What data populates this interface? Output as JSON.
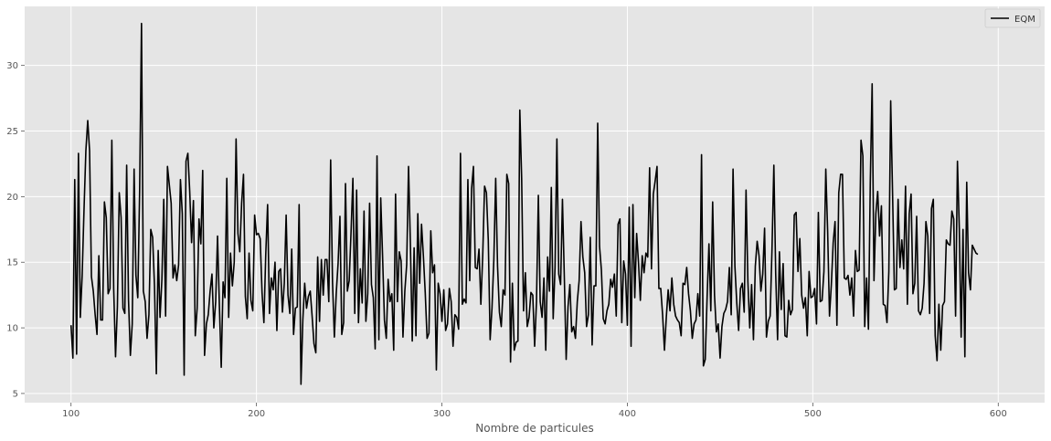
{
  "chart_data": {
    "type": "line",
    "title": "",
    "xlabel": "Nombre de particules",
    "ylabel": "",
    "xlim": [
      75,
      625
    ],
    "ylim": [
      4.3,
      34.5
    ],
    "xticks": [
      100,
      200,
      300,
      400,
      500,
      600
    ],
    "yticks": [
      5,
      10,
      15,
      20,
      25,
      30
    ],
    "grid": true,
    "legend_position": "top-right",
    "colors": {
      "plot_background": "#e5e5e5",
      "grid": "#ffffff",
      "line": "#000000"
    },
    "series": [
      {
        "name": "EQM",
        "x_start": 100,
        "x_step": 1,
        "values": [
          10.2,
          7.7,
          21.3,
          8.0,
          23.3,
          10.8,
          14.0,
          19.0,
          23.5,
          25.8,
          23.5,
          13.9,
          12.8,
          11.0,
          9.5,
          15.5,
          10.6,
          10.6,
          19.6,
          18.4,
          12.6,
          13.0,
          24.3,
          13.0,
          7.8,
          11.6,
          20.3,
          18.4,
          11.5,
          11.1,
          22.4,
          12.1,
          7.9,
          10.3,
          22.1,
          14.0,
          12.3,
          20.5,
          33.2,
          12.8,
          12.0,
          9.2,
          11.0,
          17.5,
          16.9,
          13.2,
          6.5,
          15.9,
          10.8,
          13.7,
          19.8,
          10.9,
          22.3,
          20.9,
          19.5,
          13.8,
          14.8,
          13.6,
          14.8,
          21.3,
          18.7,
          6.4,
          22.7,
          23.3,
          20.4,
          16.5,
          19.7,
          9.4,
          11.5,
          18.3,
          16.4,
          22.0,
          7.9,
          10.3,
          11.0,
          12.8,
          14.1,
          10.0,
          12.0,
          17.0,
          11.7,
          7.0,
          13.5,
          12.3,
          21.4,
          10.8,
          15.7,
          13.2,
          15.0,
          24.4,
          17.2,
          15.8,
          19.5,
          21.7,
          12.4,
          10.7,
          15.7,
          12.1,
          11.3,
          18.6,
          17.1,
          17.2,
          16.8,
          12.7,
          10.4,
          15.6,
          19.4,
          11.1,
          13.8,
          12.9,
          15.0,
          9.8,
          14.3,
          14.5,
          11.2,
          13.4,
          18.6,
          12.5,
          11.1,
          16.0,
          9.5,
          11.5,
          11.6,
          19.4,
          5.7,
          10.6,
          13.4,
          11.5,
          12.4,
          12.8,
          10.9,
          8.8,
          8.1,
          15.4,
          10.5,
          15.2,
          12.5,
          15.2,
          15.2,
          12.0,
          22.8,
          13.5,
          9.3,
          12.6,
          14.9,
          18.5,
          9.5,
          10.4,
          21.0,
          12.8,
          13.6,
          17.3,
          21.4,
          11.1,
          20.5,
          10.4,
          14.5,
          11.9,
          18.9,
          10.5,
          12.6,
          19.5,
          13.3,
          12.3,
          8.4,
          23.1,
          9.1,
          19.9,
          15.5,
          10.6,
          9.2,
          13.7,
          12.0,
          12.6,
          8.3,
          20.2,
          12.0,
          15.8,
          15.1,
          9.3,
          12.8,
          14.8,
          22.3,
          16.4,
          9.0,
          16.1,
          9.4,
          18.7,
          13.4,
          17.9,
          15.5,
          12.7,
          9.2,
          9.6,
          17.4,
          14.2,
          14.8,
          6.8,
          13.4,
          12.6,
          10.5,
          12.9,
          9.8,
          10.3,
          13.0,
          12.0,
          8.6,
          11.0,
          10.8,
          9.9,
          23.3,
          11.8,
          12.2,
          11.9,
          21.3,
          13.6,
          20.6,
          22.3,
          14.6,
          14.5,
          16.0,
          11.8,
          15.5,
          20.8,
          20.3,
          16.7,
          9.1,
          11.5,
          15.2,
          21.4,
          14.7,
          11.2,
          10.1,
          12.9,
          12.5,
          21.7,
          21.0,
          7.4,
          13.4,
          8.3,
          8.9,
          9.0,
          26.6,
          21.4,
          11.3,
          14.2,
          10.1,
          10.8,
          12.7,
          12.5,
          8.6,
          12.0,
          20.1,
          12.0,
          10.8,
          13.8,
          8.3,
          15.4,
          12.8,
          20.7,
          10.7,
          14.6,
          24.4,
          14.1,
          13.3,
          19.8,
          13.9,
          7.6,
          11.6,
          13.3,
          9.7,
          10.1,
          9.2,
          12.0,
          13.6,
          18.1,
          15.4,
          14.2,
          10.1,
          11.0,
          16.9,
          8.7,
          13.2,
          13.2,
          25.6,
          16.2,
          14.4,
          10.7,
          10.3,
          11.3,
          11.8,
          13.7,
          13.1,
          14.1,
          10.9,
          17.9,
          18.3,
          10.4,
          15.1,
          14.1,
          10.2,
          19.2,
          8.6,
          19.4,
          12.3,
          17.2,
          15.0,
          12.1,
          15.5,
          14.2,
          15.7,
          15.4,
          22.2,
          14.5,
          20.2,
          21.2,
          22.3,
          13.0,
          13.0,
          11.0,
          8.3,
          10.8,
          12.9,
          11.3,
          13.8,
          11.8,
          10.9,
          10.6,
          10.4,
          9.4,
          13.4,
          13.3,
          14.6,
          12.6,
          11.3,
          9.2,
          10.3,
          10.6,
          12.6,
          10.9,
          23.2,
          7.1,
          7.6,
          12.3,
          16.4,
          11.3,
          19.6,
          12.5,
          9.7,
          10.3,
          7.7,
          10.1,
          11.1,
          11.4,
          12.0,
          14.6,
          11.0,
          22.1,
          14.7,
          11.9,
          9.8,
          13.0,
          13.4,
          11.2,
          20.5,
          13.5,
          10.0,
          13.3,
          9.1,
          14.7,
          16.6,
          15.5,
          12.8,
          14.1,
          17.6,
          9.3,
          10.5,
          10.9,
          16.0,
          22.4,
          14.1,
          9.1,
          15.8,
          11.4,
          14.9,
          9.4,
          9.3,
          12.1,
          11.0,
          11.4,
          18.6,
          18.8,
          14.3,
          16.8,
          12.5,
          11.5,
          12.3,
          9.4,
          14.3,
          12.3,
          12.4,
          13.0,
          10.3,
          18.8,
          12.0,
          12.1,
          14.3,
          22.1,
          17.4,
          10.9,
          13.3,
          16.5,
          18.1,
          10.2,
          20.3,
          21.7,
          21.7,
          13.8,
          13.7,
          14.0,
          12.5,
          13.8,
          10.9,
          15.9,
          14.3,
          14.4,
          24.3,
          23.1,
          10.1,
          13.8,
          9.9,
          21.1,
          28.6,
          13.6,
          18.7,
          20.4,
          17.0,
          19.3,
          11.8,
          11.7,
          10.4,
          14.3,
          27.3,
          20.4,
          12.9,
          13.0,
          19.8,
          14.6,
          16.7,
          14.5,
          20.8,
          11.8,
          18.7,
          20.2,
          12.6,
          13.4,
          18.5,
          11.3,
          11.0,
          11.5,
          13.4,
          18.1,
          17.0,
          11.1,
          19.1,
          19.8,
          9.4,
          7.5,
          11.8,
          8.3,
          11.7,
          12.0,
          16.7,
          16.4,
          16.3,
          18.9,
          18.3,
          10.9,
          22.7,
          17.6,
          9.3,
          17.5,
          7.8,
          21.1,
          14.2,
          12.9,
          16.3,
          16.0,
          15.7,
          15.6
        ]
      }
    ]
  }
}
